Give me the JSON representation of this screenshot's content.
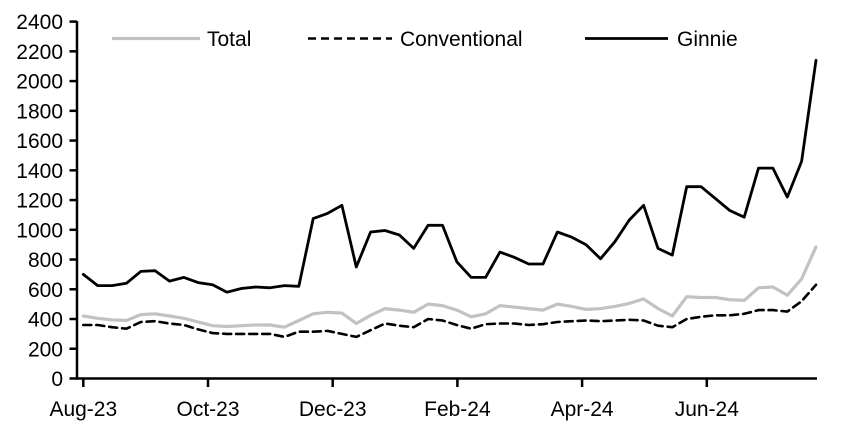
{
  "chart_data": {
    "type": "line",
    "title": "",
    "xlabel": "",
    "ylabel": "",
    "x_frequency": "weekly",
    "x_tick_labels": [
      "Aug-23",
      "Oct-23",
      "Dec-23",
      "Feb-24",
      "Apr-24",
      "Jun-24"
    ],
    "ylim": [
      0,
      2400
    ],
    "y_tick_step": 200,
    "grid": false,
    "legend_position": "top",
    "axis_color": "#000000",
    "series": [
      {
        "name": "Total",
        "color": "#c2c2c2",
        "line_style": "solid",
        "values": [
          420,
          405,
          395,
          390,
          430,
          435,
          420,
          405,
          380,
          355,
          350,
          355,
          360,
          360,
          345,
          390,
          435,
          445,
          440,
          370,
          425,
          470,
          460,
          445,
          500,
          490,
          460,
          415,
          435,
          490,
          480,
          470,
          460,
          500,
          485,
          465,
          470,
          485,
          505,
          535,
          470,
          420,
          550,
          545,
          545,
          530,
          525,
          610,
          615,
          560,
          670,
          885
        ]
      },
      {
        "name": "Conventional",
        "color": "#000000",
        "line_style": "dashed",
        "values": [
          360,
          360,
          345,
          335,
          380,
          385,
          370,
          360,
          330,
          305,
          300,
          300,
          300,
          300,
          280,
          315,
          315,
          320,
          300,
          280,
          325,
          370,
          355,
          345,
          400,
          390,
          360,
          335,
          365,
          370,
          370,
          360,
          365,
          380,
          385,
          390,
          385,
          390,
          395,
          390,
          355,
          345,
          400,
          415,
          425,
          425,
          435,
          460,
          460,
          450,
          520,
          630
        ]
      },
      {
        "name": "Ginnie",
        "color": "#000000",
        "line_style": "solid",
        "values": [
          700,
          625,
          625,
          640,
          720,
          725,
          655,
          680,
          645,
          630,
          580,
          605,
          615,
          610,
          625,
          620,
          1075,
          1110,
          1165,
          750,
          985,
          995,
          965,
          875,
          1030,
          1030,
          785,
          680,
          680,
          850,
          815,
          770,
          770,
          985,
          950,
          900,
          805,
          920,
          1065,
          1165,
          875,
          830,
          1290,
          1290,
          1210,
          1130,
          1085,
          1415,
          1415,
          1220,
          1460,
          2140
        ]
      }
    ]
  }
}
